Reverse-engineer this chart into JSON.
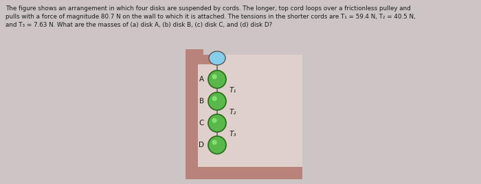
{
  "bg_color": "#cdc5c5",
  "wall_color": "#b8837a",
  "wall_inner_color": "#e0d0cc",
  "disk_color": "#5ab84a",
  "disk_edge_color": "#2e6e1e",
  "text_color": "#1a1a1a",
  "title_text": "The figure shows an arrangement in which four disks are suspended by cords. The longer, top cord loops over a frictionless pulley and\npulls with a force of magnitude 80.7 N on the wall to which it is attached. The tensions in the shorter cords are T₁ = 59.4 N, T₂ = 40.5 N,\nand T₃ = 7.63 N. What are the masses of (a) disk A, (b) disk B, (c) disk C, and (d) disk D?",
  "disk_labels": [
    "A",
    "B",
    "C",
    "D"
  ],
  "tension_labels": [
    "T₁",
    "T₂",
    "T₃"
  ],
  "cord_color": "#666666",
  "pulley_color": "#87CEEB",
  "pulley_edge": "#555555"
}
